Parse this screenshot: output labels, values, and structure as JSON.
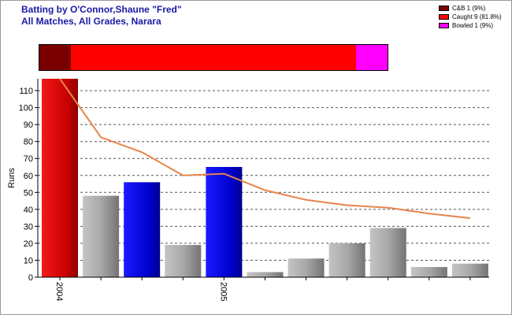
{
  "header": {
    "title_line1": "Batting by O'Connor,Shaune \"Fred\"",
    "title_line2": "All Matches, All Grades, Narara"
  },
  "legend": [
    {
      "label": "C&B 1 (9%)",
      "color": "#7a0000"
    },
    {
      "label": "Caught 9 (81.8%)",
      "color": "#ff0000"
    },
    {
      "label": "Bowled 1 (9%)",
      "color": "#ff00ff"
    }
  ],
  "colors": {
    "century": "#e00000",
    "fifty": "#0000d8",
    "normal": "#9a9a9a",
    "average_line": "#e8844a"
  },
  "chart_data": {
    "type": "bar",
    "ylabel": "Runs",
    "ylim": [
      0,
      117
    ],
    "yticks": [
      0,
      10,
      20,
      30,
      40,
      50,
      60,
      70,
      80,
      90,
      100,
      110
    ],
    "grid": true,
    "x_tick_labels": [
      {
        "index": 0,
        "label": "2004"
      },
      {
        "index": 4,
        "label": "2005"
      }
    ],
    "values": [
      117,
      48,
      56,
      19,
      65,
      3,
      11,
      20,
      29,
      6,
      8
    ],
    "bar_kind": [
      "century",
      "normal",
      "fifty",
      "normal",
      "fifty",
      "normal",
      "normal",
      "normal",
      "normal",
      "normal",
      "normal"
    ],
    "series": [
      {
        "type": "line",
        "values": [
          117,
          82.5,
          73.7,
          60,
          61,
          51.3,
          45.6,
          42.4,
          41,
          37.5,
          34.8
        ]
      }
    ]
  },
  "dismissal_bar": [
    {
      "label": "C&B",
      "share": 0.091,
      "color": "#7a0000"
    },
    {
      "label": "Caught",
      "share": 0.818,
      "color": "#ff0000"
    },
    {
      "label": "Bowled",
      "share": 0.091,
      "color": "#ff00ff"
    }
  ]
}
